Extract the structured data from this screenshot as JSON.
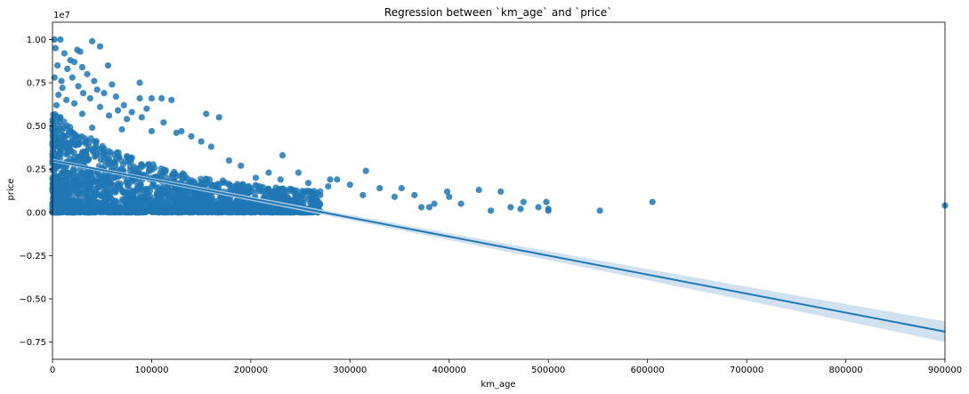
{
  "chart_data": {
    "type": "scatter",
    "title": "Regression between `km_age` and `price`",
    "xlabel": "km_age",
    "ylabel": "price",
    "y_scale_label": "1e7",
    "xlim": [
      0,
      900000
    ],
    "ylim": [
      -0.85,
      1.1
    ],
    "x_ticks": [
      0,
      100000,
      200000,
      300000,
      400000,
      500000,
      600000,
      700000,
      800000,
      900000
    ],
    "x_tick_labels": [
      "0",
      "100000",
      "200000",
      "300000",
      "400000",
      "500000",
      "600000",
      "700000",
      "800000",
      "900000"
    ],
    "y_ticks": [
      -0.75,
      -0.5,
      -0.25,
      0.0,
      0.25,
      0.5,
      0.75,
      1.0
    ],
    "y_tick_labels": [
      "−0.75",
      "−0.50",
      "−0.25",
      "0.00",
      "0.25",
      "0.50",
      "0.75",
      "1.00"
    ],
    "grid": false,
    "colors": {
      "points": "#1f77b4",
      "line": "#1f77b4",
      "ci_band": "#c6d9ec"
    },
    "series": [
      {
        "points": [
          [
            2000,
            1.0
          ],
          [
            8000,
            1.0
          ],
          [
            40000,
            0.99
          ],
          [
            48000,
            0.96
          ],
          [
            56000,
            0.85
          ],
          [
            3000,
            0.95
          ],
          [
            12000,
            0.92
          ],
          [
            25000,
            0.94
          ],
          [
            28000,
            0.93
          ],
          [
            18000,
            0.88
          ],
          [
            5000,
            0.85
          ],
          [
            15000,
            0.83
          ],
          [
            22000,
            0.87
          ],
          [
            30000,
            0.84
          ],
          [
            35000,
            0.8
          ],
          [
            2000,
            0.78
          ],
          [
            9000,
            0.76
          ],
          [
            20000,
            0.78
          ],
          [
            42000,
            0.76
          ],
          [
            60000,
            0.74
          ],
          [
            10000,
            0.72
          ],
          [
            26000,
            0.73
          ],
          [
            45000,
            0.71
          ],
          [
            88000,
            0.75
          ],
          [
            52000,
            0.69
          ],
          [
            6000,
            0.68
          ],
          [
            31000,
            0.69
          ],
          [
            64000,
            0.67
          ],
          [
            72000,
            0.62
          ],
          [
            110000,
            0.66
          ],
          [
            88000,
            0.66
          ],
          [
            100000,
            0.66
          ],
          [
            120000,
            0.65
          ],
          [
            14000,
            0.65
          ],
          [
            38000,
            0.66
          ],
          [
            4000,
            0.62
          ],
          [
            22000,
            0.63
          ],
          [
            48000,
            0.61
          ],
          [
            80000,
            0.58
          ],
          [
            95000,
            0.6
          ],
          [
            130000,
            0.47
          ],
          [
            155000,
            0.57
          ],
          [
            168000,
            0.55
          ],
          [
            112000,
            0.52
          ],
          [
            90000,
            0.55
          ],
          [
            8000,
            0.55
          ],
          [
            30000,
            0.57
          ],
          [
            57000,
            0.56
          ],
          [
            66000,
            0.59
          ],
          [
            75000,
            0.54
          ],
          [
            15000,
            0.5
          ],
          [
            40000,
            0.49
          ],
          [
            70000,
            0.48
          ],
          [
            100000,
            0.47
          ],
          [
            125000,
            0.46
          ],
          [
            140000,
            0.44
          ],
          [
            150000,
            0.41
          ],
          [
            160000,
            0.38
          ],
          [
            178000,
            0.3
          ],
          [
            190000,
            0.27
          ],
          [
            205000,
            0.2
          ],
          [
            218000,
            0.23
          ],
          [
            230000,
            0.19
          ],
          [
            232000,
            0.33
          ],
          [
            248000,
            0.23
          ],
          [
            258000,
            0.17
          ],
          [
            260000,
            0.12
          ],
          [
            270000,
            0.1
          ],
          [
            278000,
            0.15
          ],
          [
            280000,
            0.19
          ],
          [
            287000,
            0.19
          ],
          [
            300000,
            0.16
          ],
          [
            313000,
            0.1
          ],
          [
            316000,
            0.24
          ],
          [
            330000,
            0.14
          ],
          [
            345000,
            0.09
          ],
          [
            352000,
            0.14
          ],
          [
            365000,
            0.1
          ],
          [
            372000,
            0.03
          ],
          [
            380000,
            0.03
          ],
          [
            385000,
            0.05
          ],
          [
            398000,
            0.12
          ],
          [
            400000,
            0.09
          ],
          [
            412000,
            0.05
          ],
          [
            430000,
            0.13
          ],
          [
            442000,
            0.01
          ],
          [
            452000,
            0.12
          ],
          [
            462000,
            0.03
          ],
          [
            472000,
            0.02
          ],
          [
            475000,
            0.06
          ],
          [
            490000,
            0.03
          ],
          [
            498000,
            0.06
          ],
          [
            500000,
            0.02
          ],
          [
            552000,
            0.01
          ],
          [
            605000,
            0.06
          ],
          [
            900000,
            0.04
          ],
          [
            500000,
            0.01
          ]
        ]
      }
    ],
    "regression": {
      "intercept": 0.3,
      "slope_per_km": -1.1e-06,
      "ci_width_at_0": 0.01,
      "ci_width_at_900000": 0.06
    }
  }
}
